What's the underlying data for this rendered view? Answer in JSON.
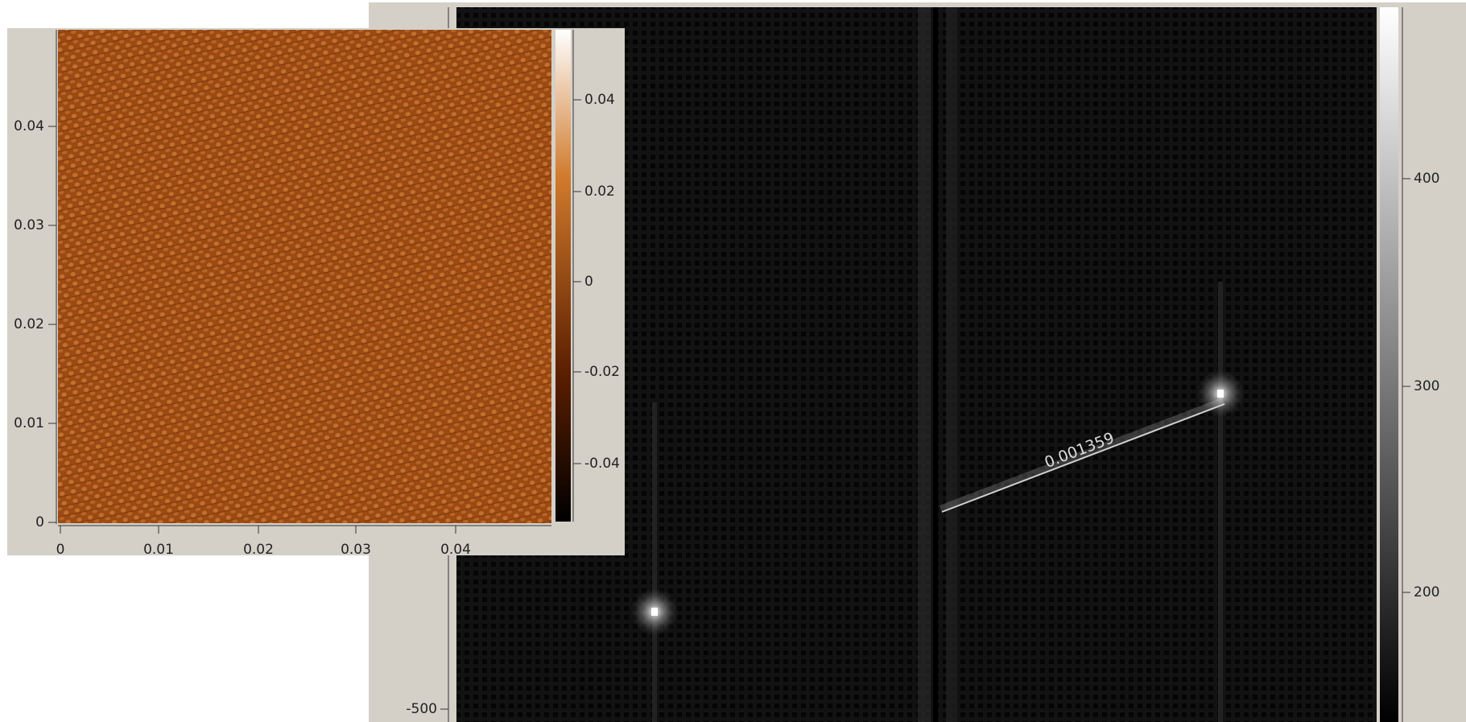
{
  "left_window": {
    "x_ticks": [
      "0",
      "0.01",
      "0.02",
      "0.03",
      "0.04"
    ],
    "y_ticks": [
      "0",
      "0.01",
      "0.02",
      "0.03",
      "0.04"
    ],
    "colorbar_ticks": [
      "0.04",
      "0.02",
      "0",
      "-0.02",
      "-0.04"
    ]
  },
  "right_window": {
    "y_ticks": [
      "-500"
    ],
    "colorbar_ticks": [
      "400",
      "300",
      "200"
    ],
    "measurement": "0.001359"
  }
}
